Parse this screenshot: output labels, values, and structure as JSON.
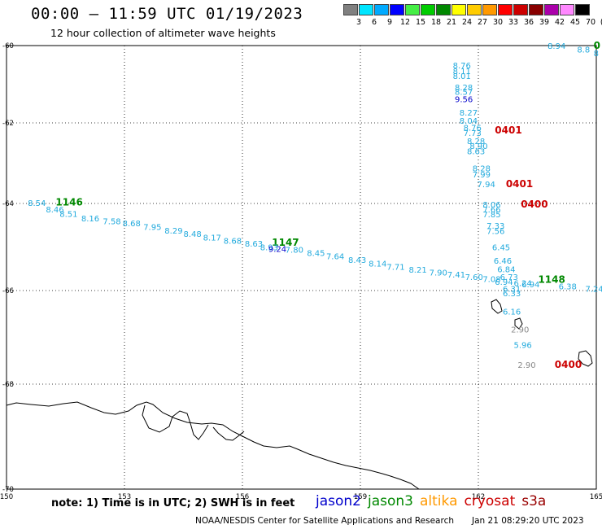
{
  "header": {
    "title": "00:00 – 11:59 UTC 01/19/2023",
    "subtitle": "12 hour collection of altimeter wave heights"
  },
  "scale": {
    "labels": [
      "3",
      "6",
      "9",
      "12",
      "15",
      "18",
      "21",
      "24",
      "27",
      "30",
      "33",
      "36",
      "39",
      "42",
      "45",
      "70",
      "(ft)"
    ],
    "colors": [
      "#808080",
      "#00e5ff",
      "#00aaff",
      "#0000ff",
      "#44ee44",
      "#00cc00",
      "#008800",
      "#ffff00",
      "#ffcc00",
      "#ff9900",
      "#ff0000",
      "#cc0000",
      "#880000",
      "#aa00aa",
      "#ff88ff",
      "#000000"
    ]
  },
  "map": {
    "lon_labels": [
      "150",
      "153",
      "156",
      "159",
      "162",
      "165"
    ],
    "lat_labels": [
      "-60",
      "-62",
      "-64",
      "-66",
      "-68",
      "-70"
    ],
    "track_colors": {
      "sentinel": "#22aadd",
      "jason3": "#008800",
      "cryosat": "#cc0000",
      "jason2": "#0000cc",
      "grey": "#888888"
    },
    "points": [
      {
        "t": "8.94",
        "lon": 163.76,
        "lat": -59.95,
        "c": "sentinel"
      },
      {
        "t": "0",
        "lon": 164.93,
        "lat": -59.95,
        "c": "jason3",
        "bold": true
      },
      {
        "t": "8",
        "lon": 164.93,
        "lat": -60.19,
        "c": "sentinel"
      },
      {
        "t": "8.8",
        "lon": 164.51,
        "lat": -60.09,
        "c": "sentinel"
      },
      {
        "t": "8.76",
        "lon": 161.35,
        "lat": -60.5,
        "c": "sentinel"
      },
      {
        "t": "8.11",
        "lon": 161.35,
        "lat": -60.65,
        "c": "sentinel"
      },
      {
        "t": "8.01",
        "lon": 161.35,
        "lat": -60.78,
        "c": "sentinel"
      },
      {
        "t": "8.28",
        "lon": 161.4,
        "lat": -61.07,
        "c": "sentinel"
      },
      {
        "t": "8.57",
        "lon": 161.4,
        "lat": -61.19,
        "c": "sentinel"
      },
      {
        "t": "9.56",
        "lon": 161.4,
        "lat": -61.38,
        "c": "jason2"
      },
      {
        "t": "8.27",
        "lon": 161.52,
        "lat": -61.73,
        "c": "sentinel"
      },
      {
        "t": "8.04",
        "lon": 161.52,
        "lat": -61.94,
        "c": "sentinel"
      },
      {
        "t": "8.76",
        "lon": 161.62,
        "lat": -62.11,
        "c": "sentinel"
      },
      {
        "t": "7.73",
        "lon": 161.62,
        "lat": -62.24,
        "c": "sentinel"
      },
      {
        "t": "0401",
        "lon": 162.42,
        "lat": -62.18,
        "c": "cryosat",
        "bold": true
      },
      {
        "t": "8.28",
        "lon": 161.71,
        "lat": -62.44,
        "c": "sentinel"
      },
      {
        "t": "8.90",
        "lon": 161.78,
        "lat": -62.57,
        "c": "sentinel"
      },
      {
        "t": "8.63",
        "lon": 161.71,
        "lat": -62.7,
        "c": "sentinel"
      },
      {
        "t": "8.28",
        "lon": 161.85,
        "lat": -63.12,
        "c": "sentinel"
      },
      {
        "t": "7.99",
        "lon": 161.85,
        "lat": -63.27,
        "c": "sentinel"
      },
      {
        "t": "0401",
        "lon": 162.7,
        "lat": -63.52,
        "c": "cryosat",
        "bold": true
      },
      {
        "t": "7.94",
        "lon": 161.97,
        "lat": -63.52,
        "c": "sentinel"
      },
      {
        "t": "0400",
        "lon": 163.08,
        "lat": -64.02,
        "c": "cryosat",
        "bold": true
      },
      {
        "t": "8.06",
        "lon": 162.11,
        "lat": -64.02,
        "c": "sentinel"
      },
      {
        "t": "7.66",
        "lon": 162.11,
        "lat": -64.13,
        "c": "sentinel"
      },
      {
        "t": "7.85",
        "lon": 162.11,
        "lat": -64.24,
        "c": "sentinel"
      },
      {
        "t": "7.33",
        "lon": 162.21,
        "lat": -64.5,
        "c": "sentinel"
      },
      {
        "t": "7.56",
        "lon": 162.21,
        "lat": -64.63,
        "c": "sentinel"
      },
      {
        "t": "6.45",
        "lon": 162.35,
        "lat": -65.0,
        "c": "sentinel"
      },
      {
        "t": "6.46",
        "lon": 162.39,
        "lat": -65.31,
        "c": "sentinel"
      },
      {
        "t": "6.84",
        "lon": 162.48,
        "lat": -65.5,
        "c": "sentinel"
      },
      {
        "t": "6.73",
        "lon": 162.55,
        "lat": -65.68,
        "c": "sentinel"
      },
      {
        "t": "6.24",
        "lon": 162.9,
        "lat": -65.82,
        "c": "sentinel"
      },
      {
        "t": "6.31",
        "lon": 162.62,
        "lat": -65.95,
        "c": "sentinel"
      },
      {
        "t": "6.33",
        "lon": 162.62,
        "lat": -66.05,
        "c": "sentinel"
      },
      {
        "t": "6.16",
        "lon": 162.62,
        "lat": -66.44,
        "c": "sentinel"
      },
      {
        "t": "2.90",
        "lon": 162.83,
        "lat": -66.83,
        "c": "grey"
      },
      {
        "t": "5.96",
        "lon": 162.9,
        "lat": -67.16,
        "c": "sentinel"
      },
      {
        "t": "2.90",
        "lon": 163.0,
        "lat": -67.58,
        "c": "grey"
      },
      {
        "t": "0400",
        "lon": 163.94,
        "lat": -67.58,
        "c": "cryosat",
        "bold": true
      },
      {
        "t": "1148",
        "lon": 163.52,
        "lat": -65.75,
        "c": "jason3",
        "bold": true
      },
      {
        "t": "6.94",
        "lon": 163.1,
        "lat": -65.85,
        "c": "sentinel"
      },
      {
        "t": "6.38",
        "lon": 164.04,
        "lat": -65.9,
        "c": "sentinel"
      },
      {
        "t": "7.24",
        "lon": 164.72,
        "lat": -65.95,
        "c": "sentinel"
      },
      {
        "t": "8.54",
        "lon": 150.54,
        "lat": -63.98,
        "c": "sentinel"
      },
      {
        "t": "1146",
        "lon": 151.25,
        "lat": -63.97,
        "c": "jason3",
        "bold": true
      },
      {
        "t": "8.46",
        "lon": 151.0,
        "lat": -64.13,
        "c": "sentinel"
      },
      {
        "t": "8.51",
        "lon": 151.35,
        "lat": -64.23,
        "c": "sentinel"
      },
      {
        "t": "8.16",
        "lon": 151.9,
        "lat": -64.34,
        "c": "sentinel"
      },
      {
        "t": "7.58",
        "lon": 152.45,
        "lat": -64.4,
        "c": "sentinel"
      },
      {
        "t": "8.68",
        "lon": 152.95,
        "lat": -64.45,
        "c": "sentinel"
      },
      {
        "t": "7.95",
        "lon": 153.48,
        "lat": -64.53,
        "c": "sentinel"
      },
      {
        "t": "8.29",
        "lon": 154.02,
        "lat": -64.62,
        "c": "sentinel"
      },
      {
        "t": "8.48",
        "lon": 154.5,
        "lat": -64.69,
        "c": "sentinel"
      },
      {
        "t": "8.17",
        "lon": 155.0,
        "lat": -64.78,
        "c": "sentinel"
      },
      {
        "t": "8.68",
        "lon": 155.52,
        "lat": -64.85,
        "c": "sentinel"
      },
      {
        "t": "8.63",
        "lon": 156.06,
        "lat": -64.92,
        "c": "sentinel"
      },
      {
        "t": "1147",
        "lon": 156.75,
        "lat": -64.9,
        "c": "jason3",
        "bold": true
      },
      {
        "t": "8.93",
        "lon": 156.45,
        "lat": -65.0,
        "c": "sentinel"
      },
      {
        "t": "9.24",
        "lon": 156.66,
        "lat": -65.04,
        "c": "jason2"
      },
      {
        "t": "7.80",
        "lon": 157.09,
        "lat": -65.06,
        "c": "sentinel"
      },
      {
        "t": "8.45",
        "lon": 157.64,
        "lat": -65.13,
        "c": "sentinel"
      },
      {
        "t": "7.64",
        "lon": 158.13,
        "lat": -65.21,
        "c": "sentinel"
      },
      {
        "t": "8.43",
        "lon": 158.69,
        "lat": -65.29,
        "c": "sentinel"
      },
      {
        "t": "8.14",
        "lon": 159.21,
        "lat": -65.37,
        "c": "sentinel"
      },
      {
        "t": "7.71",
        "lon": 159.67,
        "lat": -65.45,
        "c": "sentinel"
      },
      {
        "t": "8.21",
        "lon": 160.23,
        "lat": -65.51,
        "c": "sentinel"
      },
      {
        "t": "7.90",
        "lon": 160.75,
        "lat": -65.58,
        "c": "sentinel"
      },
      {
        "t": "7.41",
        "lon": 161.21,
        "lat": -65.63,
        "c": "sentinel"
      },
      {
        "t": "7.60",
        "lon": 161.66,
        "lat": -65.68,
        "c": "sentinel"
      },
      {
        "t": "7.08",
        "lon": 162.11,
        "lat": -65.73,
        "c": "sentinel"
      },
      {
        "t": "6.94",
        "lon": 162.42,
        "lat": -65.79,
        "c": "sentinel"
      }
    ]
  },
  "footer": {
    "note": "note:  1) Time is in UTC;  2) SWH is in feet",
    "legend": [
      {
        "name": "jason2",
        "color": "#0000cc"
      },
      {
        "name": "jason3",
        "color": "#008800"
      },
      {
        "name": "altika",
        "color": "#ff9900"
      },
      {
        "name": "cryosat",
        "color": "#cc0000"
      },
      {
        "name": "s3a",
        "color": "#990000"
      }
    ],
    "credit": "NOAA/NESDIS Center for Satellite Applications and Research",
    "stamp": "Jan 21 08:29:20 UTC 2023"
  }
}
